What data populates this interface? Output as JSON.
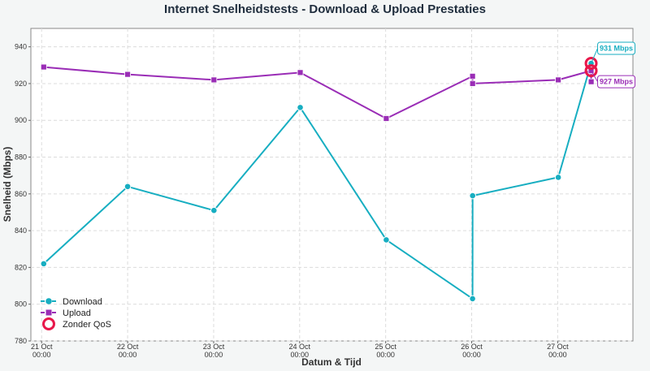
{
  "chart_data": {
    "type": "line",
    "title": "Internet Snelheidstests - Download & Upload Prestaties",
    "xlabel": "Datum & Tijd",
    "ylabel": "Snelheid (Mbps)",
    "ylim": [
      780,
      950
    ],
    "yticks": [
      780,
      800,
      820,
      840,
      860,
      880,
      900,
      920,
      940
    ],
    "xlim": [
      "2024-10-20T21:00",
      "2024-10-27T21:00"
    ],
    "xticks": [
      {
        "x": "2024-10-21T00:00",
        "line1": "21 Oct",
        "line2": "00:00"
      },
      {
        "x": "2024-10-22T00:00",
        "line1": "22 Oct",
        "line2": "00:00"
      },
      {
        "x": "2024-10-23T00:00",
        "line1": "23 Oct",
        "line2": "00:00"
      },
      {
        "x": "2024-10-24T00:00",
        "line1": "24 Oct",
        "line2": "00:00"
      },
      {
        "x": "2024-10-25T00:00",
        "line1": "25 Oct",
        "line2": "00:00"
      },
      {
        "x": "2024-10-26T00:00",
        "line1": "26 Oct",
        "line2": "00:00"
      },
      {
        "x": "2024-10-27T00:00",
        "line1": "27 Oct",
        "line2": "00:00"
      }
    ],
    "grid": true,
    "legend_position": "bottom-left",
    "series": [
      {
        "name": "Download",
        "color": "#17aec1",
        "marker": "circle",
        "points": [
          {
            "x": "2024-10-21T00:35",
            "y": 822
          },
          {
            "x": "2024-10-22T00:00",
            "y": 864
          },
          {
            "x": "2024-10-23T00:05",
            "y": 851
          },
          {
            "x": "2024-10-24T00:10",
            "y": 907
          },
          {
            "x": "2024-10-25T00:10",
            "y": 835
          },
          {
            "x": "2024-10-26T00:15",
            "y": 803
          },
          {
            "x": "2024-10-26T00:16",
            "y": 859
          },
          {
            "x": "2024-10-27T00:10",
            "y": 869
          },
          {
            "x": "2024-10-27T09:20",
            "y": 931
          }
        ]
      },
      {
        "name": "Upload",
        "color": "#9a2db6",
        "marker": "square",
        "points": [
          {
            "x": "2024-10-21T00:35",
            "y": 929
          },
          {
            "x": "2024-10-22T00:00",
            "y": 925
          },
          {
            "x": "2024-10-23T00:05",
            "y": 922
          },
          {
            "x": "2024-10-24T00:10",
            "y": 926
          },
          {
            "x": "2024-10-25T00:10",
            "y": 901
          },
          {
            "x": "2024-10-26T00:15",
            "y": 924
          },
          {
            "x": "2024-10-26T00:16",
            "y": 920
          },
          {
            "x": "2024-10-27T00:10",
            "y": 922
          },
          {
            "x": "2024-10-27T09:20",
            "y": 927
          },
          {
            "x": "2024-10-27T09:21",
            "y": 921
          }
        ]
      }
    ],
    "highlights": {
      "name": "Zonder QoS",
      "color": "#e8174a",
      "points": [
        {
          "x": "2024-10-27T09:20",
          "y": 931
        },
        {
          "x": "2024-10-27T09:20",
          "y": 927
        }
      ]
    },
    "annotations": [
      {
        "text": "931 Mbps",
        "x": "2024-10-27T09:20",
        "y": 931,
        "color": "#17aec1",
        "placement": "above-right"
      },
      {
        "text": "927 Mbps",
        "x": "2024-10-27T09:20",
        "y": 927,
        "color": "#9a2db6",
        "placement": "below-right"
      }
    ]
  }
}
